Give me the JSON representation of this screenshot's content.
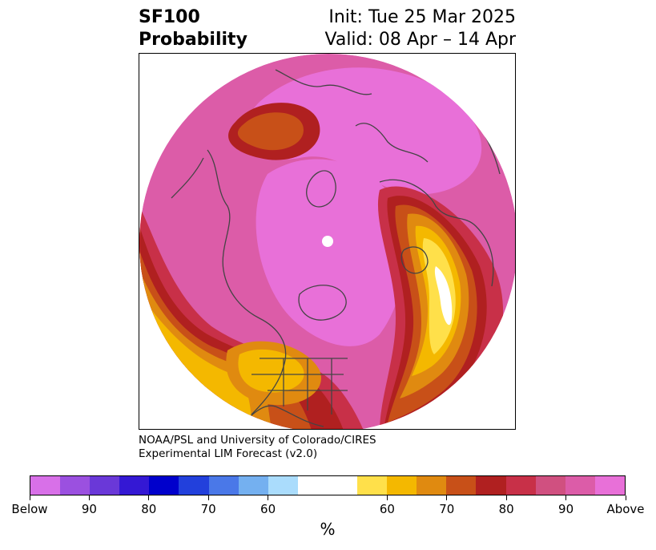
{
  "header": {
    "variable": "SF100",
    "product": "Probability",
    "init": "Init: Tue 25 Mar 2025",
    "valid": "Valid: 08 Apr – 14 Apr"
  },
  "credit": {
    "line1": "NOAA/PSL and University of Colorado/CIRES",
    "line2": "Experimental LIM Forecast (v2.0)"
  },
  "colorbar": {
    "colors": [
      "#d870e8",
      "#9b50e0",
      "#6a38d8",
      "#3418d4",
      "#0000cc",
      "#2240dc",
      "#4a78e8",
      "#74b0f0",
      "#aadcfc",
      "#ffffff",
      "#ffffff",
      "#ffe04a",
      "#f4b800",
      "#e08a10",
      "#c85018",
      "#b02020",
      "#c83048",
      "#d05080",
      "#dc5ca8",
      "#e870d8"
    ],
    "tick_labels": [
      "Below",
      "90",
      "80",
      "70",
      "60",
      "60",
      "70",
      "80",
      "90",
      "Above"
    ],
    "unit": "%"
  },
  "map": {
    "projection": "north-polar-stereographic",
    "field": "SF100 above/below-normal probability"
  }
}
